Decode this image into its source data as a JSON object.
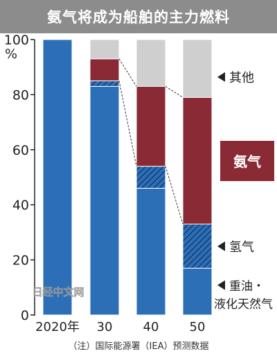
{
  "chart_data": {
    "type": "bar",
    "title": "氨气将成为船舶的主力燃料",
    "ylabel": "%",
    "ylim": [
      0,
      100
    ],
    "yticks": [
      0,
      20,
      40,
      60,
      80,
      100
    ],
    "categories": [
      "2020年",
      "30",
      "40",
      "50"
    ],
    "series": [
      {
        "name": "重油・液化天然气",
        "values": [
          100,
          83,
          46,
          17
        ]
      },
      {
        "name": "氢气",
        "values": [
          0,
          2,
          8,
          16
        ]
      },
      {
        "name": "氨气",
        "values": [
          0,
          8,
          29,
          46
        ]
      },
      {
        "name": "其他",
        "values": [
          0,
          7,
          17,
          21
        ]
      }
    ],
    "colors": {
      "oil_lng": "#2d6fb7",
      "hydrogen": "#2d6fb7",
      "ammonia": "#8a2a34",
      "other": "#cfcfcf",
      "header": "#8c8c8c"
    },
    "legend_placement": "right",
    "footnote": "（注）国际能源署（IEA）预测数据",
    "watermark": "日经中文网"
  }
}
